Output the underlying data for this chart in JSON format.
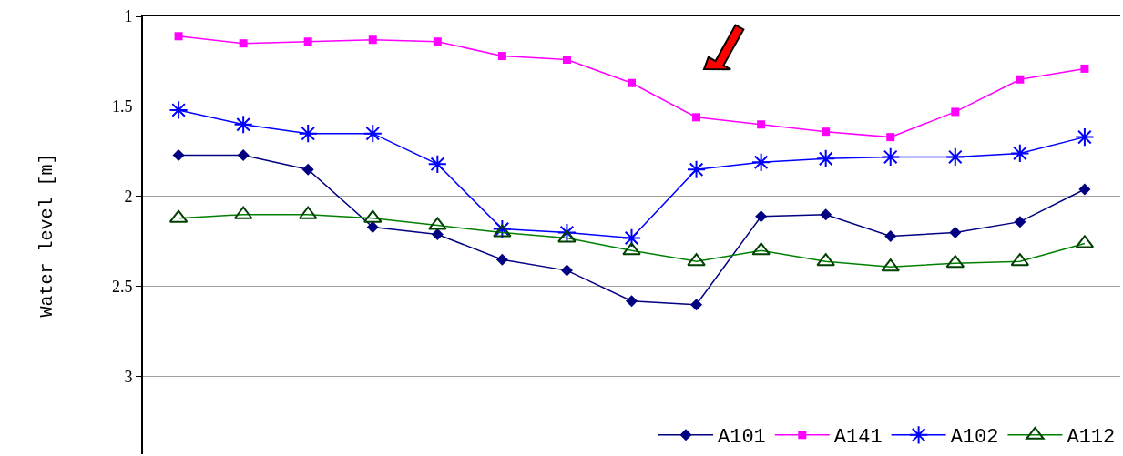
{
  "chart_data": {
    "type": "line",
    "ylabel": "Water level [m]",
    "categories": [
      null,
      null,
      null,
      null,
      null,
      null,
      null,
      null,
      null,
      null,
      null,
      null,
      null,
      null,
      null
    ],
    "series": [
      {
        "name": "A101",
        "color": "#000080",
        "marker": "diamond",
        "values": [
          1.77,
          1.77,
          1.85,
          2.17,
          2.21,
          2.35,
          2.41,
          2.58,
          2.6,
          2.11,
          2.1,
          2.22,
          2.2,
          2.14,
          1.96
        ]
      },
      {
        "name": "A141",
        "color": "#ff00ff",
        "marker": "square",
        "values": [
          1.11,
          1.15,
          1.14,
          1.13,
          1.14,
          1.22,
          1.24,
          1.37,
          1.56,
          1.6,
          1.64,
          1.67,
          1.53,
          1.35,
          1.29
        ]
      },
      {
        "name": "A102",
        "color": "#0000ff",
        "marker": "cross",
        "values": [
          1.52,
          1.6,
          1.65,
          1.65,
          1.82,
          2.18,
          2.2,
          2.23,
          1.85,
          1.81,
          1.79,
          1.78,
          1.78,
          1.76,
          1.67
        ]
      },
      {
        "name": "A112",
        "color": "#008000",
        "marker": "triangle",
        "values": [
          2.12,
          2.1,
          2.1,
          2.12,
          2.16,
          2.2,
          2.23,
          2.3,
          2.36,
          2.3,
          2.36,
          2.39,
          2.37,
          2.36,
          2.26
        ]
      }
    ],
    "ylim": [
      3.43,
      1
    ],
    "yticks": [
      1,
      1.5,
      2,
      2.5,
      3
    ],
    "grid": "y",
    "legend": "bottom right",
    "line_style": "solid",
    "tick_labels": "y"
  }
}
